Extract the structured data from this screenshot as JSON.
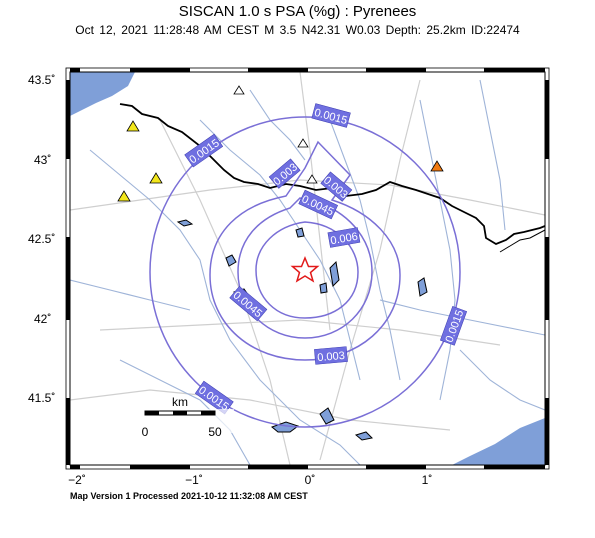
{
  "header": {
    "title": "SISCAN 1.0 s PSA (%g) : Pyrenees",
    "subtitle": "Oct 12, 2021 11:28:48 AM CEST   M 3.5   N42.31 W0.03   Depth: 25.2km   ID:22474"
  },
  "map": {
    "lat_labels": [
      "43.5˚",
      "43˚",
      "42.5˚",
      "42˚",
      "41.5˚"
    ],
    "lon_labels": [
      "−2˚",
      "−1˚",
      "0˚",
      "1˚"
    ],
    "contour_labels": [
      "0.0015",
      "0.0015",
      "0.003",
      "0.003",
      "0.0045",
      "0.006",
      "0.0045",
      "0.003",
      "0.0015",
      "0.0015"
    ],
    "scale_bar": {
      "unit": "km",
      "start": "0",
      "end": "50"
    },
    "colors": {
      "water": "#7f9fd8",
      "contour": "#7a6fd6",
      "label_box": "#6f6fe0",
      "border": "#000000",
      "rivers": "#9fb4d8",
      "roads": "#cfcfcf",
      "epicenter": "#e21a1a",
      "station_yellow": "#f2e61b",
      "station_orange": "#f07a12",
      "station_white": "#ffffff"
    },
    "epicenter_icon": "star-icon",
    "station_icon": "triangle-icon"
  },
  "footer": {
    "text": "Map Version 1 Processed 2021-10-12 11:32:08 AM CEST"
  }
}
